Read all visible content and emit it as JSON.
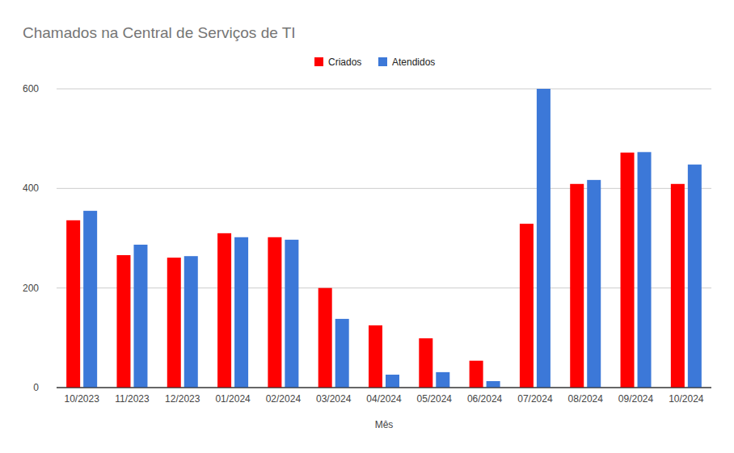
{
  "chart_data": {
    "type": "bar",
    "title": "Chamados na Central de Serviços de TI",
    "x_label": "Mês",
    "categories": [
      "10/2023",
      "11/2023",
      "12/2023",
      "01/2024",
      "02/2024",
      "03/2024",
      "04/2024",
      "05/2024",
      "06/2024",
      "07/2024",
      "08/2024",
      "09/2024",
      "10/2024"
    ],
    "series": [
      {
        "name": "Criados",
        "color": "#ff0000",
        "values": [
          336,
          266,
          261,
          310,
          302,
          200,
          125,
          99,
          54,
          329,
          409,
          472,
          409
        ]
      },
      {
        "name": "Atendidos",
        "color": "#3c78d8",
        "values": [
          355,
          287,
          264,
          302,
          297,
          138,
          26,
          31,
          13,
          600,
          417,
          473,
          448
        ]
      }
    ],
    "ylim": [
      0,
      600
    ],
    "yticks": [
      0,
      200,
      400,
      600
    ],
    "grid": true,
    "legend": "top"
  }
}
